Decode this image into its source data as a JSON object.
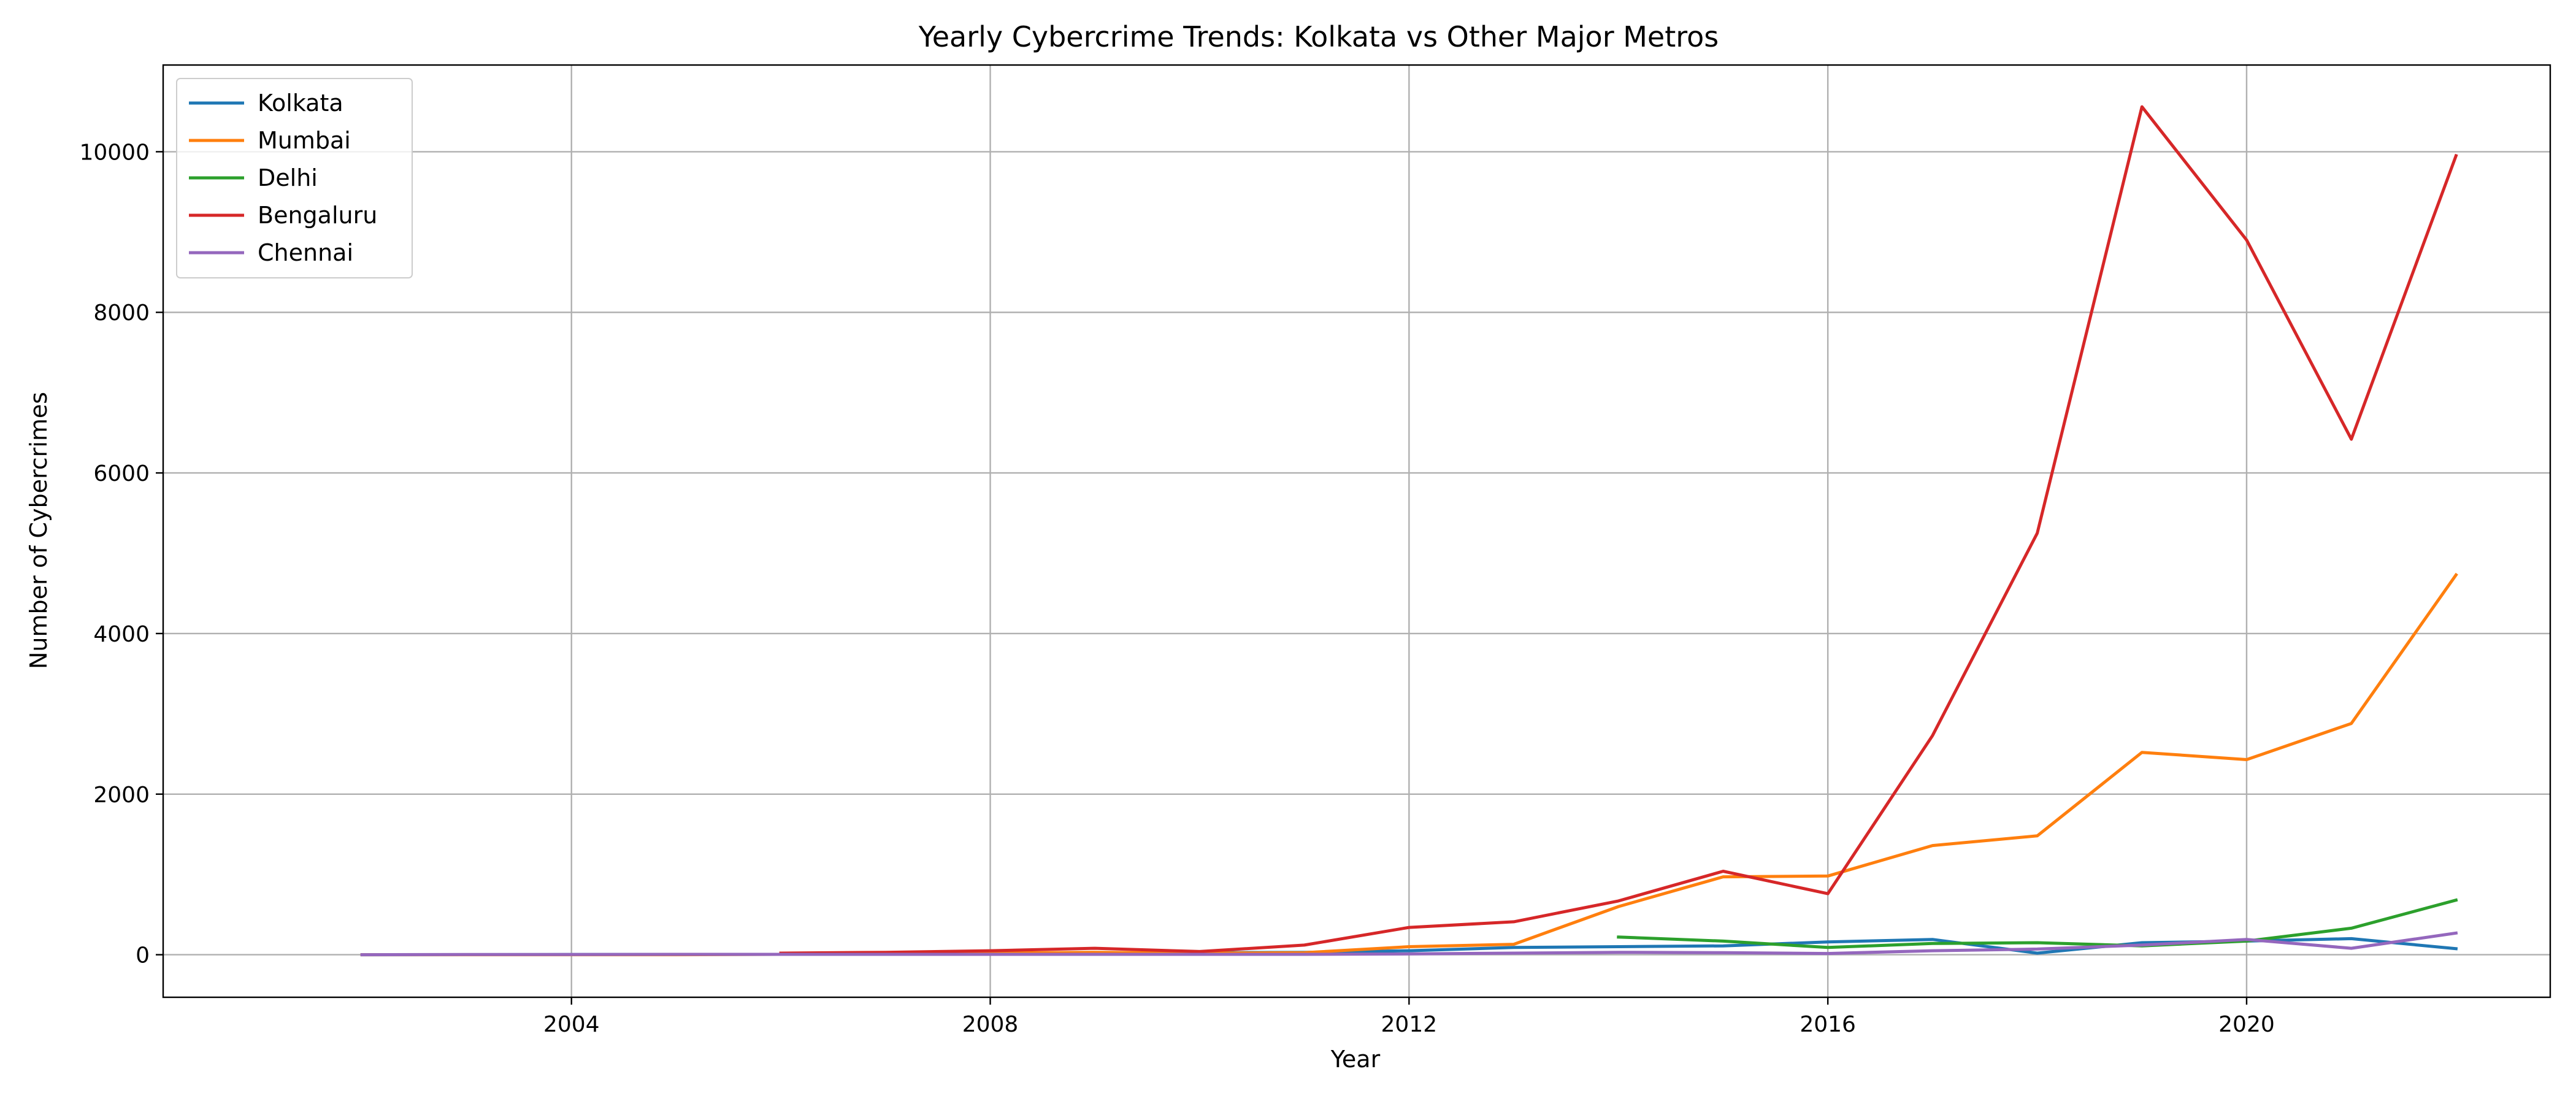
{
  "chart_data": {
    "type": "line",
    "title": "Yearly Cybercrime Trends: Kolkata vs Other Major Metros",
    "xlabel": "Year",
    "ylabel": "Number of Cybercrimes",
    "xlim": [
      2000.1,
      2022.9
    ],
    "ylim": [
      -530,
      11080
    ],
    "xticks": [
      2004,
      2008,
      2012,
      2016,
      2020
    ],
    "yticks": [
      0,
      2000,
      4000,
      6000,
      8000,
      10000
    ],
    "grid": true,
    "legend_position": "upper-left",
    "series": [
      {
        "name": "Kolkata",
        "color": "#1f77b4",
        "x": [
          2002,
          2003,
          2004,
          2005,
          2006,
          2007,
          2008,
          2009,
          2010,
          2011,
          2012,
          2013,
          2014,
          2015,
          2016,
          2017,
          2018,
          2019,
          2020,
          2021,
          2022
        ],
        "y": [
          0,
          1,
          2,
          3,
          5,
          8,
          15,
          20,
          25,
          30,
          50,
          90,
          100,
          110,
          160,
          190,
          20,
          150,
          170,
          200,
          75
        ]
      },
      {
        "name": "Mumbai",
        "color": "#ff7f0e",
        "x": [
          2002,
          2003,
          2004,
          2005,
          2006,
          2007,
          2008,
          2009,
          2010,
          2011,
          2012,
          2013,
          2014,
          2015,
          2016,
          2017,
          2018,
          2019,
          2020,
          2021,
          2022
        ],
        "y": [
          0,
          0,
          0,
          0,
          5,
          10,
          20,
          30,
          20,
          25,
          100,
          130,
          600,
          970,
          980,
          1360,
          1480,
          2520,
          2430,
          2880,
          4730
        ]
      },
      {
        "name": "Delhi",
        "color": "#2ca02c",
        "x": [
          2014,
          2015,
          2016,
          2017,
          2018,
          2019,
          2020,
          2021,
          2022
        ],
        "y": [
          220,
          170,
          90,
          140,
          150,
          110,
          170,
          330,
          680
        ]
      },
      {
        "name": "Bengaluru",
        "color": "#d62728",
        "x": [
          2006,
          2007,
          2008,
          2009,
          2010,
          2011,
          2012,
          2013,
          2014,
          2015,
          2016,
          2017,
          2018,
          2019,
          2020,
          2021,
          2022
        ],
        "y": [
          20,
          30,
          50,
          80,
          40,
          120,
          340,
          410,
          670,
          1040,
          760,
          2730,
          5250,
          10560,
          8900,
          6420,
          9950
        ]
      },
      {
        "name": "Chennai",
        "color": "#9467bd",
        "x": [
          2002,
          2003,
          2004,
          2005,
          2006,
          2007,
          2008,
          2009,
          2010,
          2011,
          2012,
          2013,
          2014,
          2015,
          2016,
          2017,
          2018,
          2019,
          2020,
          2021,
          2022
        ],
        "y": [
          0,
          2,
          3,
          5,
          5,
          5,
          5,
          5,
          5,
          5,
          10,
          20,
          30,
          25,
          15,
          50,
          70,
          120,
          190,
          80,
          270
        ]
      }
    ]
  }
}
